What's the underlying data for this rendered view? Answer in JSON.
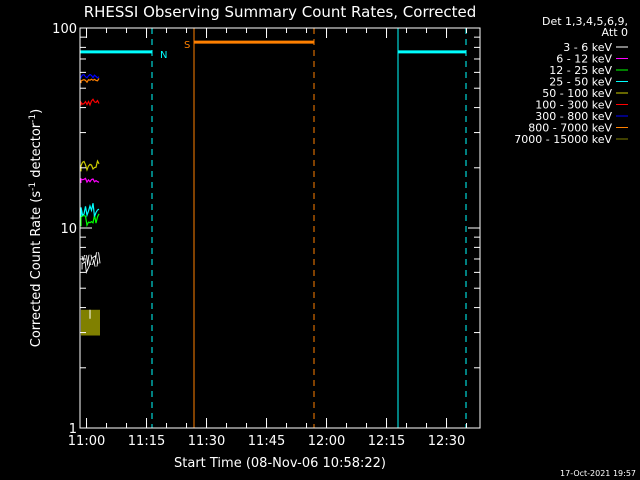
{
  "chart_data": {
    "type": "line",
    "title": "RHESSI Observing Summary Count Rates, Corrected",
    "xlabel": "Start Time (08-Nov-06 10:58:22)",
    "ylabel_main": "Corrected Count Rate (s",
    "ylabel_sup1": "-1",
    "ylabel_mid": " detector",
    "ylabel_sup2": "-1",
    "ylabel_end": ")",
    "x_units": "minutes after 10:58:22",
    "xlim": [
      0,
      100
    ],
    "ylim": [
      1,
      100
    ],
    "log_y": true,
    "grid": false,
    "x_ticks": [
      {
        "label": "11:00",
        "value": 1.63
      },
      {
        "label": "11:15",
        "value": 16.63
      },
      {
        "label": "11:30",
        "value": 31.63
      },
      {
        "label": "11:45",
        "value": 46.63
      },
      {
        "label": "12:00",
        "value": 61.63
      },
      {
        "label": "12:15",
        "value": 76.63
      },
      {
        "label": "12:30",
        "value": 91.63
      }
    ],
    "y_ticks": [
      {
        "label": "1",
        "value": 1
      },
      {
        "label": "10",
        "value": 10
      },
      {
        "label": "100",
        "value": 100
      }
    ],
    "legend": {
      "placement": "right",
      "header": [
        "Det 1,3,4,5,6,9,",
        "Att 0"
      ],
      "entries": [
        {
          "label": "3 - 6 keV",
          "color": "#000000"
        },
        {
          "label": "6 - 12 keV",
          "color": "#ff00ff"
        },
        {
          "label": "12 - 25 keV",
          "color": "#00ff00"
        },
        {
          "label": "25 - 50 keV",
          "color": "#00ffff"
        },
        {
          "label": "50 - 100 keV",
          "color": "#cccc00"
        },
        {
          "label": "100 - 300 keV",
          "color": "#ff0000"
        },
        {
          "label": "300 - 800 keV",
          "color": "#0000ff"
        },
        {
          "label": "800 - 7000 keV",
          "color": "#ff8000"
        },
        {
          "label": "7000 - 15000 keV",
          "color": "#808000"
        }
      ]
    },
    "series": [
      {
        "band": "7000 - 15000 keV",
        "color": "#808000",
        "x_range": [
          0,
          5
        ],
        "y_range": [
          2.9,
          3.9
        ],
        "fill": true
      },
      {
        "band": "3 - 6 keV",
        "color": "#000000",
        "outline": "#ffffff",
        "x_range": [
          0,
          5
        ],
        "y_range": [
          6.2,
          7.6
        ]
      },
      {
        "band": "12 - 25 keV",
        "color": "#00ff00",
        "x_range": [
          0,
          5
        ],
        "y_range": [
          10.2,
          11.9
        ]
      },
      {
        "band": "25 - 50 keV",
        "color": "#00ffff",
        "x_range": [
          0,
          5
        ],
        "y_range": [
          11.4,
          13.5
        ]
      },
      {
        "band": "6 - 12 keV",
        "color": "#ff00ff",
        "x_range": [
          0,
          5
        ],
        "y_range": [
          16.8,
          18.2
        ]
      },
      {
        "band": "50 - 100 keV",
        "color": "#cccc00",
        "x_range": [
          0,
          5
        ],
        "y_range": [
          19.2,
          21.8
        ]
      },
      {
        "band": "100 - 300 keV",
        "color": "#ff0000",
        "x_range": [
          0,
          5
        ],
        "y_range": [
          41,
          44.5
        ]
      },
      {
        "band": "800 - 7000 keV",
        "color": "#ff8000",
        "x_range": [
          0,
          5
        ],
        "y_range": [
          53,
          56.5
        ]
      },
      {
        "band": "300 - 800 keV",
        "color": "#0000ff",
        "x_range": [
          0,
          5
        ],
        "y_range": [
          56,
          58.5
        ]
      }
    ],
    "flags": [
      {
        "label": "N",
        "color": "#00ffff",
        "y": 76,
        "segments": [
          [
            0,
            18
          ]
        ],
        "label_x": 20
      },
      {
        "label": "",
        "color": "#00ffff",
        "y": 76,
        "segments": [
          [
            79.5,
            96.5
          ]
        ]
      },
      {
        "label": "S",
        "color": "#ff8000",
        "y": 85,
        "segments": [
          [
            28.5,
            58.5
          ]
        ],
        "label_x": 26
      }
    ],
    "markers": [
      {
        "x": 0,
        "color": "#00ffff",
        "style": "solid"
      },
      {
        "x": 18,
        "color": "#00ffff",
        "style": "dashed"
      },
      {
        "x": 28.5,
        "color": "#ff8000",
        "style": "solid"
      },
      {
        "x": 58.5,
        "color": "#ff8000",
        "style": "dashed"
      },
      {
        "x": 79.5,
        "color": "#00ffff",
        "style": "solid"
      },
      {
        "x": 96.5,
        "color": "#00ffff",
        "style": "dashed"
      }
    ],
    "footer": "17-Oct-2021 19:57"
  }
}
